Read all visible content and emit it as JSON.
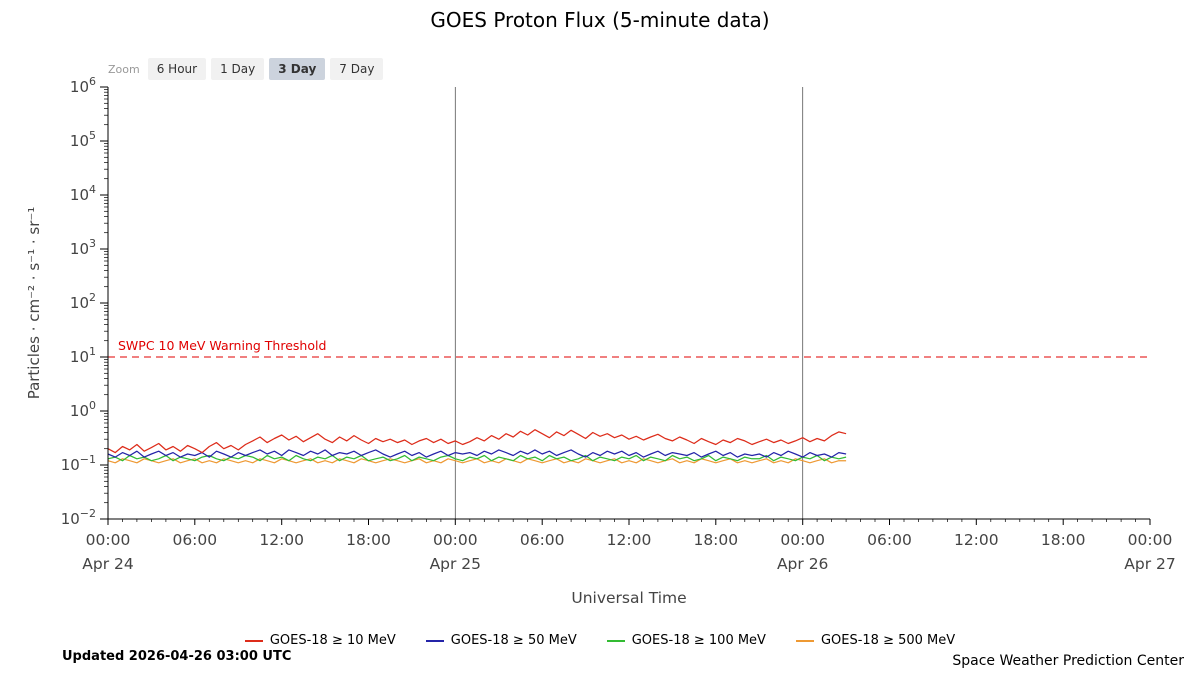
{
  "title": "GOES Proton Flux (5-minute data)",
  "zoom": {
    "label": "Zoom",
    "options": [
      {
        "label": "6 Hour",
        "selected": false
      },
      {
        "label": "1 Day",
        "selected": false
      },
      {
        "label": "3 Day",
        "selected": true
      },
      {
        "label": "7 Day",
        "selected": false
      }
    ]
  },
  "footer": {
    "updated": "Updated 2026-04-26 03:00 UTC",
    "credit": "Space Weather Prediction Center"
  },
  "chart_data": {
    "type": "line",
    "title": "GOES Proton Flux (5-minute data)",
    "xlabel": "Universal Time",
    "ylabel": "Particles · cm⁻² · s⁻¹ · sr⁻¹",
    "y_scale": "log",
    "y_exponent_range": [
      -2,
      6
    ],
    "x_range_hours": [
      0,
      72
    ],
    "x_ticks": [
      {
        "hour": 0,
        "label": "00:00"
      },
      {
        "hour": 6,
        "label": "06:00"
      },
      {
        "hour": 12,
        "label": "12:00"
      },
      {
        "hour": 18,
        "label": "18:00"
      },
      {
        "hour": 24,
        "label": "00:00"
      },
      {
        "hour": 30,
        "label": "06:00"
      },
      {
        "hour": 36,
        "label": "12:00"
      },
      {
        "hour": 42,
        "label": "18:00"
      },
      {
        "hour": 48,
        "label": "00:00"
      },
      {
        "hour": 54,
        "label": "06:00"
      },
      {
        "hour": 60,
        "label": "12:00"
      },
      {
        "hour": 66,
        "label": "18:00"
      },
      {
        "hour": 72,
        "label": "00:00"
      }
    ],
    "day_labels": [
      {
        "hour": 0,
        "label": "Apr 24"
      },
      {
        "hour": 24,
        "label": "Apr 25"
      },
      {
        "hour": 48,
        "label": "Apr 26"
      },
      {
        "hour": 72,
        "label": "Apr 27"
      }
    ],
    "day_gridlines_hours": [
      24,
      48
    ],
    "data_start_hour": 0,
    "data_end_hour": 51,
    "threshold": {
      "value": 10,
      "label": "SWPC 10 MeV Warning Threshold",
      "color": "#e00000"
    },
    "series": [
      {
        "name": "GOES-18 ≥ 10 MeV",
        "color": "#dd2c1a",
        "values": [
          0.2,
          0.17,
          0.22,
          0.19,
          0.24,
          0.18,
          0.21,
          0.25,
          0.19,
          0.22,
          0.18,
          0.23,
          0.2,
          0.17,
          0.22,
          0.26,
          0.2,
          0.23,
          0.19,
          0.24,
          0.28,
          0.33,
          0.26,
          0.31,
          0.36,
          0.29,
          0.34,
          0.27,
          0.32,
          0.38,
          0.3,
          0.26,
          0.33,
          0.28,
          0.35,
          0.29,
          0.25,
          0.31,
          0.27,
          0.3,
          0.26,
          0.29,
          0.24,
          0.28,
          0.31,
          0.26,
          0.3,
          0.25,
          0.28,
          0.24,
          0.27,
          0.32,
          0.28,
          0.35,
          0.3,
          0.38,
          0.33,
          0.42,
          0.36,
          0.45,
          0.38,
          0.32,
          0.41,
          0.35,
          0.44,
          0.37,
          0.31,
          0.4,
          0.34,
          0.38,
          0.32,
          0.36,
          0.3,
          0.34,
          0.29,
          0.33,
          0.37,
          0.31,
          0.28,
          0.33,
          0.29,
          0.25,
          0.31,
          0.27,
          0.24,
          0.29,
          0.26,
          0.31,
          0.28,
          0.24,
          0.27,
          0.3,
          0.26,
          0.29,
          0.25,
          0.28,
          0.32,
          0.27,
          0.31,
          0.28,
          0.35,
          0.41,
          0.38
        ]
      },
      {
        "name": "GOES-18 ≥ 50 MeV",
        "color": "#2424a8",
        "values": [
          0.16,
          0.14,
          0.17,
          0.15,
          0.18,
          0.14,
          0.16,
          0.18,
          0.15,
          0.17,
          0.14,
          0.16,
          0.15,
          0.17,
          0.14,
          0.18,
          0.16,
          0.14,
          0.17,
          0.15,
          0.17,
          0.19,
          0.16,
          0.18,
          0.15,
          0.19,
          0.17,
          0.15,
          0.18,
          0.16,
          0.19,
          0.15,
          0.17,
          0.16,
          0.18,
          0.15,
          0.17,
          0.19,
          0.16,
          0.14,
          0.16,
          0.18,
          0.15,
          0.17,
          0.14,
          0.16,
          0.18,
          0.15,
          0.17,
          0.16,
          0.17,
          0.15,
          0.18,
          0.16,
          0.19,
          0.17,
          0.15,
          0.18,
          0.16,
          0.19,
          0.16,
          0.18,
          0.15,
          0.17,
          0.19,
          0.16,
          0.14,
          0.17,
          0.15,
          0.18,
          0.16,
          0.18,
          0.15,
          0.17,
          0.14,
          0.16,
          0.18,
          0.15,
          0.17,
          0.16,
          0.15,
          0.17,
          0.14,
          0.16,
          0.18,
          0.15,
          0.17,
          0.14,
          0.16,
          0.15,
          0.16,
          0.14,
          0.17,
          0.15,
          0.18,
          0.16,
          0.14,
          0.17,
          0.15,
          0.16,
          0.14,
          0.17,
          0.16
        ]
      },
      {
        "name": "GOES-18 ≥ 100 MeV",
        "color": "#33bb33",
        "values": [
          0.13,
          0.14,
          0.12,
          0.15,
          0.13,
          0.14,
          0.12,
          0.13,
          0.15,
          0.12,
          0.14,
          0.13,
          0.12,
          0.14,
          0.15,
          0.13,
          0.12,
          0.14,
          0.13,
          0.15,
          0.14,
          0.12,
          0.15,
          0.13,
          0.14,
          0.12,
          0.15,
          0.13,
          0.12,
          0.14,
          0.13,
          0.15,
          0.12,
          0.14,
          0.13,
          0.15,
          0.12,
          0.13,
          0.14,
          0.12,
          0.13,
          0.15,
          0.12,
          0.14,
          0.13,
          0.12,
          0.14,
          0.15,
          0.13,
          0.12,
          0.14,
          0.13,
          0.15,
          0.12,
          0.14,
          0.13,
          0.12,
          0.15,
          0.13,
          0.14,
          0.12,
          0.15,
          0.13,
          0.14,
          0.12,
          0.13,
          0.15,
          0.12,
          0.14,
          0.13,
          0.12,
          0.14,
          0.13,
          0.15,
          0.12,
          0.14,
          0.13,
          0.12,
          0.15,
          0.13,
          0.14,
          0.12,
          0.13,
          0.15,
          0.12,
          0.14,
          0.13,
          0.12,
          0.14,
          0.13,
          0.13,
          0.15,
          0.12,
          0.14,
          0.13,
          0.12,
          0.14,
          0.13,
          0.15,
          0.12,
          0.14,
          0.13,
          0.14
        ]
      },
      {
        "name": "GOES-18 ≥ 500 MeV",
        "color": "#ee9933",
        "values": [
          0.12,
          0.11,
          0.13,
          0.12,
          0.11,
          0.13,
          0.12,
          0.11,
          0.12,
          0.13,
          0.11,
          0.12,
          0.13,
          0.11,
          0.12,
          0.11,
          0.13,
          0.12,
          0.11,
          0.12,
          0.11,
          0.13,
          0.12,
          0.11,
          0.13,
          0.12,
          0.11,
          0.12,
          0.13,
          0.11,
          0.12,
          0.11,
          0.13,
          0.12,
          0.11,
          0.13,
          0.12,
          0.11,
          0.12,
          0.13,
          0.12,
          0.11,
          0.12,
          0.13,
          0.11,
          0.12,
          0.11,
          0.13,
          0.12,
          0.11,
          0.12,
          0.13,
          0.11,
          0.12,
          0.11,
          0.13,
          0.12,
          0.11,
          0.13,
          0.12,
          0.11,
          0.12,
          0.13,
          0.11,
          0.12,
          0.11,
          0.13,
          0.12,
          0.11,
          0.12,
          0.13,
          0.11,
          0.12,
          0.11,
          0.13,
          0.12,
          0.11,
          0.12,
          0.13,
          0.11,
          0.12,
          0.11,
          0.13,
          0.12,
          0.11,
          0.12,
          0.13,
          0.11,
          0.12,
          0.11,
          0.12,
          0.13,
          0.11,
          0.12,
          0.11,
          0.13,
          0.12,
          0.11,
          0.12,
          0.13,
          0.11,
          0.12,
          0.12
        ]
      }
    ]
  }
}
